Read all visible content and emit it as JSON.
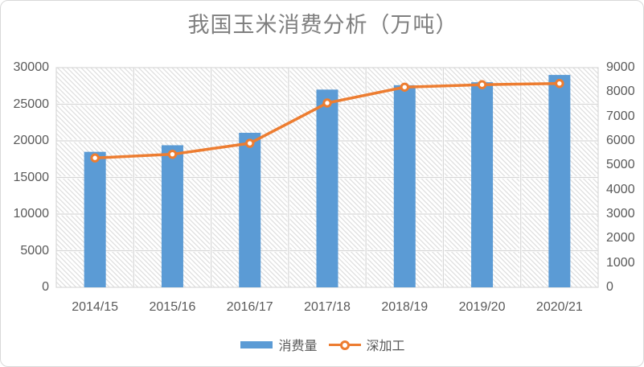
{
  "chart_data": {
    "type": "bar+line combo",
    "title": "我国玉米消费分析（万吨）",
    "categories": [
      "2014/15",
      "2015/16",
      "2016/17",
      "2017/18",
      "2018/19",
      "2019/20",
      "2020/21"
    ],
    "series": [
      {
        "name": "消费量",
        "type": "bar",
        "axis": "left",
        "color": "#5b9bd5",
        "values": [
          18500,
          19400,
          21100,
          27000,
          27600,
          28000,
          29000
        ]
      },
      {
        "name": "深加工",
        "type": "line",
        "axis": "right",
        "color": "#ed7d31",
        "marker": "open-circle-white-fill",
        "values": [
          5300,
          5450,
          5900,
          7550,
          8200,
          8300,
          8350
        ]
      }
    ],
    "left_axis": {
      "min": 0,
      "max": 30000,
      "step": 5000,
      "tick_labels": [
        "0",
        "5000",
        "10000",
        "15000",
        "20000",
        "25000",
        "30000"
      ]
    },
    "right_axis": {
      "min": 0,
      "max": 9000,
      "step": 1000,
      "tick_labels": [
        "0",
        "1000",
        "2000",
        "3000",
        "4000",
        "5000",
        "6000",
        "7000",
        "8000",
        "9000"
      ]
    },
    "grid": "horizontal and vertical gridlines on",
    "legend_position": "bottom",
    "plot_background": "light diagonal hatch pattern"
  },
  "colors": {
    "bar_fill": "#5b9bd5",
    "line_stroke": "#ed7d31",
    "marker_fill": "#ffffff",
    "gridline": "#d6d6d6",
    "plot_border": "#d9d9d9",
    "frame_border": "#d9d9d9",
    "title_text": "#7f7f7f",
    "axis_text": "#595959"
  }
}
